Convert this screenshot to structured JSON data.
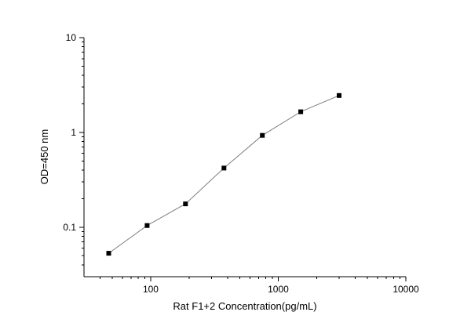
{
  "chart_data": {
    "type": "line",
    "title": "",
    "xlabel": "Rat F1+2 Concentration(pg/mL)",
    "ylabel": "OD=450 nm",
    "x_scale": "log",
    "y_scale": "log",
    "xlim": [
      30,
      10000
    ],
    "ylim": [
      0.03,
      10
    ],
    "x_ticks": [
      {
        "value": 100,
        "label": "100"
      },
      {
        "value": 1000,
        "label": "1000"
      },
      {
        "value": 10000,
        "label": "10000"
      }
    ],
    "y_ticks": [
      {
        "value": 0.1,
        "label": "0.1"
      },
      {
        "value": 1,
        "label": "1"
      },
      {
        "value": 10,
        "label": "10"
      }
    ],
    "grid": false,
    "legend": "none",
    "series": [
      {
        "x": [
          46.875,
          93.75,
          187.5,
          375,
          750,
          1500,
          3000
        ],
        "y": [
          0.053,
          0.104,
          0.176,
          0.42,
          0.93,
          1.65,
          2.45
        ],
        "marker": "square",
        "marker_color": "#000000",
        "line_color": "#7f7f7f"
      }
    ]
  }
}
